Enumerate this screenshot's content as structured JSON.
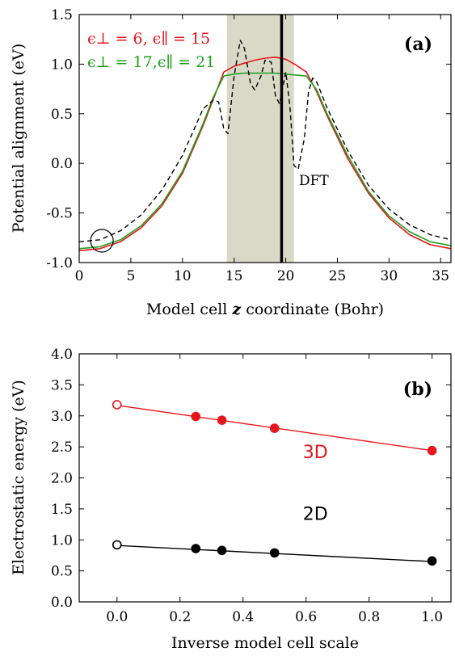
{
  "chart_data": [
    {
      "type": "line",
      "panel_label": "(a)",
      "xlabel_pre": "Model cell ",
      "xlabel_var": "z",
      "xlabel_post": " coordinate (Bohr)",
      "ylabel": "Potential alignment (eV)",
      "xlim": [
        0,
        36
      ],
      "ylim": [
        -1.0,
        1.5
      ],
      "xticks": [
        0,
        5,
        10,
        15,
        20,
        25,
        30,
        35
      ],
      "xtick_labels": [
        "0",
        "5",
        "10",
        "15",
        "20",
        "25",
        "30",
        "35"
      ],
      "yticks": [
        -1.0,
        -0.5,
        0.0,
        0.5,
        1.0,
        1.5
      ],
      "ytick_labels": [
        "-1.0",
        "-0.5",
        "0.0",
        "0.5",
        "1.0",
        "1.5"
      ],
      "shaded_region": [
        14.3,
        20.8
      ],
      "vertical_line_x": 19.6,
      "circle_marker": {
        "x": 2.2,
        "y": -0.78
      },
      "colors": {
        "red": "#e8161b",
        "green": "#1fa01f",
        "dft": "#000000",
        "shade": "#d9d9c8"
      },
      "legend": [
        {
          "text": "ϵ⊥ = 6, ϵ∥ = 15",
          "color": "#e8161b"
        },
        {
          "text": "ϵ⊥ = 17,ϵ∥ = 21",
          "color": "#1fa01f"
        }
      ],
      "annotation": "DFT",
      "series": [
        {
          "color": "#e8161b",
          "x": [
            0,
            2,
            4,
            6,
            8,
            10,
            12,
            13,
            14,
            15,
            16,
            17,
            18,
            19,
            20,
            21,
            22,
            23,
            24,
            26,
            28,
            30,
            32,
            34,
            36
          ],
          "y": [
            -0.88,
            -0.86,
            -0.79,
            -0.65,
            -0.43,
            -0.1,
            0.38,
            0.65,
            0.92,
            0.98,
            1.01,
            1.04,
            1.06,
            1.07,
            1.05,
            0.99,
            0.92,
            0.72,
            0.48,
            0.05,
            -0.3,
            -0.55,
            -0.72,
            -0.82,
            -0.86
          ]
        },
        {
          "color": "#1fa01f",
          "x": [
            0,
            2,
            4,
            6,
            8,
            10,
            12,
            13,
            14,
            15,
            16,
            17,
            18,
            19,
            20,
            21,
            22,
            23,
            24,
            26,
            28,
            30,
            32,
            34,
            36
          ],
          "y": [
            -0.86,
            -0.84,
            -0.77,
            -0.63,
            -0.41,
            -0.08,
            0.4,
            0.67,
            0.88,
            0.9,
            0.91,
            0.91,
            0.91,
            0.91,
            0.9,
            0.89,
            0.88,
            0.74,
            0.5,
            0.08,
            -0.28,
            -0.53,
            -0.69,
            -0.79,
            -0.83
          ]
        },
        {
          "color": "#000000",
          "dashed": true,
          "x": [
            0,
            2,
            4,
            6,
            8,
            10,
            12,
            13,
            13.5,
            14,
            14.4,
            15,
            15.6,
            16,
            16.6,
            17,
            17.6,
            18,
            18.6,
            19,
            19.4,
            20,
            20.4,
            20.8,
            21.2,
            21.8,
            22.2,
            22.6,
            23,
            24,
            26,
            28,
            30,
            32,
            34,
            36
          ],
          "y": [
            -0.79,
            -0.77,
            -0.68,
            -0.52,
            -0.27,
            0.08,
            0.55,
            0.64,
            0.62,
            0.35,
            0.3,
            0.88,
            1.24,
            1.16,
            0.8,
            0.74,
            0.88,
            1.04,
            1.02,
            0.68,
            0.6,
            0.92,
            0.58,
            -0.02,
            -0.06,
            0.25,
            0.72,
            0.86,
            0.82,
            0.56,
            0.13,
            -0.22,
            -0.46,
            -0.62,
            -0.72,
            -0.77
          ]
        }
      ]
    },
    {
      "type": "scatter",
      "panel_label": "(b)",
      "xlabel": "Inverse model cell scale",
      "ylabel": "Electrostatic energy (eV)",
      "xlim": [
        -0.12,
        1.06
      ],
      "ylim": [
        0.0,
        4.0
      ],
      "xticks": [
        0.0,
        0.2,
        0.4,
        0.6,
        0.8,
        1.0
      ],
      "xtick_labels": [
        "0.0",
        "0.2",
        "0.4",
        "0.6",
        "0.8",
        "1.0"
      ],
      "yticks": [
        0.0,
        0.5,
        1.0,
        1.5,
        2.0,
        2.5,
        3.0,
        3.5,
        4.0
      ],
      "ytick_labels": [
        "0.0",
        "0.5",
        "1.0",
        "1.5",
        "2.0",
        "2.5",
        "3.0",
        "3.5",
        "4.0"
      ],
      "series": [
        {
          "name": "3D",
          "color": "#e8161b",
          "x": [
            0.0,
            0.25,
            0.333,
            0.5,
            1.0
          ],
          "y": [
            3.18,
            2.99,
            2.93,
            2.8,
            2.44
          ],
          "open_first": true,
          "fit": {
            "x": [
              0.0,
              1.0
            ],
            "y": [
              3.17,
              2.44
            ]
          },
          "label_at": [
            0.59,
            2.32
          ]
        },
        {
          "name": "2D",
          "color": "#000000",
          "x": [
            0.0,
            0.25,
            0.333,
            0.5,
            1.0
          ],
          "y": [
            0.92,
            0.86,
            0.83,
            0.79,
            0.66
          ],
          "open_first": true,
          "fit": {
            "x": [
              0.0,
              1.0
            ],
            "y": [
              0.91,
              0.65
            ]
          },
          "label_at": [
            0.59,
            1.32
          ]
        }
      ]
    }
  ]
}
